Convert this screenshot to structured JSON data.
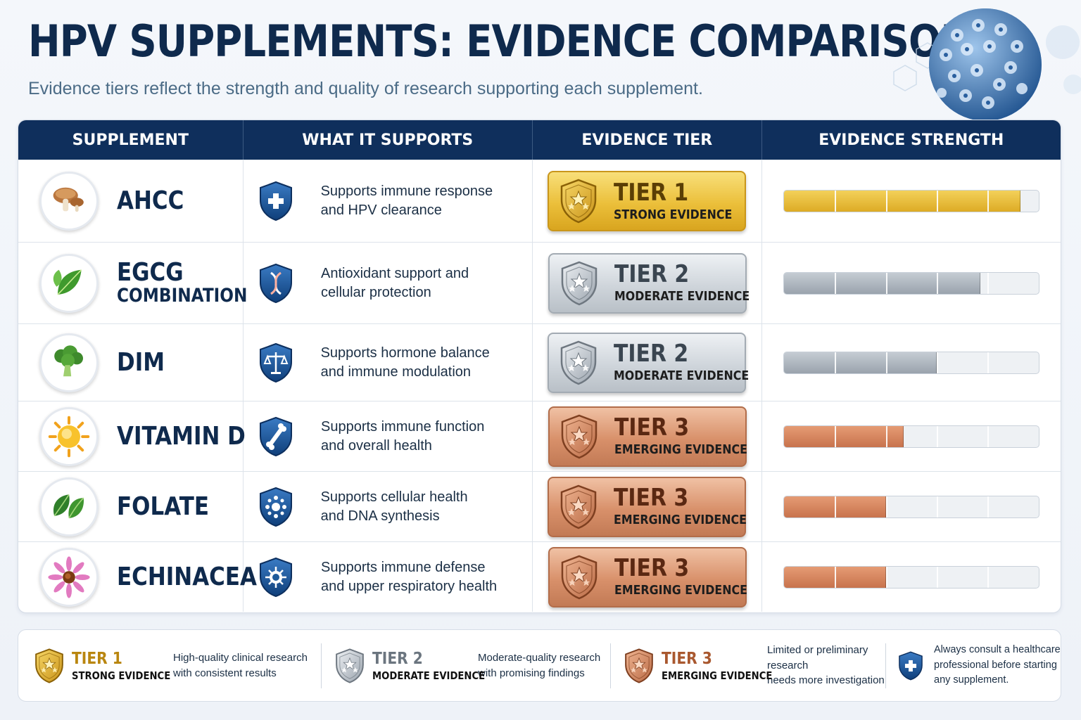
{
  "header": {
    "title": "HPV SUPPLEMENTS: EVIDENCE COMPARISON",
    "subtitle": "Evidence tiers reflect the strength and quality of research supporting each supplement."
  },
  "table": {
    "columns": [
      "SUPPLEMENT",
      "WHAT IT SUPPORTS",
      "EVIDENCE TIER",
      "EVIDENCE STRENGTH"
    ],
    "rows": [
      {
        "name": "AHCC",
        "sub": "",
        "icon": "mushroom-icon",
        "supports_icon": "medical-cross-shield-icon",
        "supports": [
          "Supports immune response",
          "and HPV clearance"
        ],
        "tier": "TIER 1",
        "tier_label": "STRONG EVIDENCE",
        "tier_style": "gold",
        "strength": 0.93
      },
      {
        "name": "EGCG",
        "sub": "COMBINATION",
        "icon": "tea-leaf-icon",
        "supports_icon": "dna-shield-icon",
        "supports": [
          "Antioxidant support and",
          "cellular protection"
        ],
        "tier": "TIER 2",
        "tier_label": "MODERATE EVIDENCE",
        "tier_style": "silver",
        "strength": 0.77
      },
      {
        "name": "DIM",
        "sub": "",
        "icon": "broccoli-icon",
        "supports_icon": "balance-scale-shield-icon",
        "supports": [
          "Supports hormone balance",
          "and immune modulation"
        ],
        "tier": "TIER 2",
        "tier_label": "MODERATE EVIDENCE",
        "tier_style": "silver",
        "strength": 0.6
      },
      {
        "name": "VITAMIN D",
        "sub": "",
        "icon": "sun-icon",
        "supports_icon": "bone-shield-icon",
        "supports": [
          "Supports immune function",
          "and overall health"
        ],
        "tier": "TIER 3",
        "tier_label": "EMERGING EVIDENCE",
        "tier_style": "bronze",
        "strength": 0.47
      },
      {
        "name": "FOLATE",
        "sub": "",
        "icon": "spinach-icon",
        "supports_icon": "cell-shield-icon",
        "supports": [
          "Supports cellular health",
          "and DNA synthesis"
        ],
        "tier": "TIER 3",
        "tier_label": "EMERGING EVIDENCE",
        "tier_style": "bronze",
        "strength": 0.4
      },
      {
        "name": "ECHINACEA",
        "sub": "",
        "icon": "echinacea-flower-icon",
        "supports_icon": "virus-shield-icon",
        "supports": [
          "Supports immune defense",
          "and upper respiratory health"
        ],
        "tier": "TIER 3",
        "tier_label": "EMERGING EVIDENCE",
        "tier_style": "bronze",
        "strength": 0.4
      }
    ]
  },
  "legend": {
    "items": [
      {
        "tier": "TIER 1",
        "label": "STRONG EVIDENCE",
        "style": "gold",
        "desc": [
          "High-quality clinical research",
          "with consistent results"
        ]
      },
      {
        "tier": "TIER 2",
        "label": "MODERATE EVIDENCE",
        "style": "silver",
        "desc": [
          "Moderate-quality research",
          "with promising findings"
        ]
      },
      {
        "tier": "TIER 3",
        "label": "EMERGING EVIDENCE",
        "style": "bronze",
        "desc": [
          "Limited or preliminary research",
          "needs more investigation"
        ]
      }
    ],
    "note": [
      "Always consult a healthcare",
      "professional before starting",
      "any supplement."
    ]
  },
  "colors": {
    "navy": "#0f2f5c",
    "gold": "#e3b42e",
    "silver": "#b4bcc4",
    "bronze": "#cf8460"
  }
}
